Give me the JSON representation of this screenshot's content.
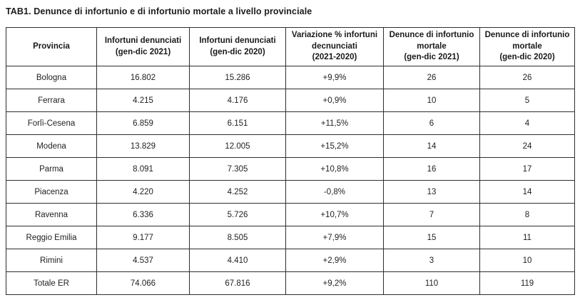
{
  "title": "TAB1. Denunce di infortunio e di infortunio mortale a livello provinciale",
  "colors": {
    "text": "#1a1a1a",
    "border": "#2e2e2e",
    "background": "#ffffff"
  },
  "chart_data": {
    "type": "table",
    "title": "TAB1. Denunce di infortunio e di infortunio mortale a livello provinciale",
    "columns": [
      "Provincia",
      "Infortuni denunciati\n(gen-dic 2021)",
      "Infortuni denunciati\n(gen-dic 2020)",
      "Variazione % infortuni\ndecnunciati\n(2021-2020)",
      "Denunce di infortunio\nmortale\n(gen-dic 2021)",
      "Denunce di infortunio\nmortale\n(gen-dic 2020)"
    ],
    "rows": [
      [
        "Bologna",
        "16.802",
        "15.286",
        "+9,9%",
        "26",
        "26"
      ],
      [
        "Ferrara",
        "4.215",
        "4.176",
        "+0,9%",
        "10",
        "5"
      ],
      [
        "Forlì-Cesena",
        "6.859",
        "6.151",
        "+11,5%",
        "6",
        "4"
      ],
      [
        "Modena",
        "13.829",
        "12.005",
        "+15,2%",
        "14",
        "24"
      ],
      [
        "Parma",
        "8.091",
        "7.305",
        "+10,8%",
        "16",
        "17"
      ],
      [
        "Piacenza",
        "4.220",
        "4.252",
        "-0,8%",
        "13",
        "14"
      ],
      [
        "Ravenna",
        "6.336",
        "5.726",
        "+10,7%",
        "7",
        "8"
      ],
      [
        "Reggio Emilia",
        "9.177",
        "8.505",
        "+7,9%",
        "15",
        "11"
      ],
      [
        "Rimini",
        "4.537",
        "4.410",
        "+2,9%",
        "3",
        "10"
      ],
      [
        "Totale ER",
        "74.066",
        "67.816",
        "+9,2%",
        "110",
        "119"
      ]
    ]
  }
}
